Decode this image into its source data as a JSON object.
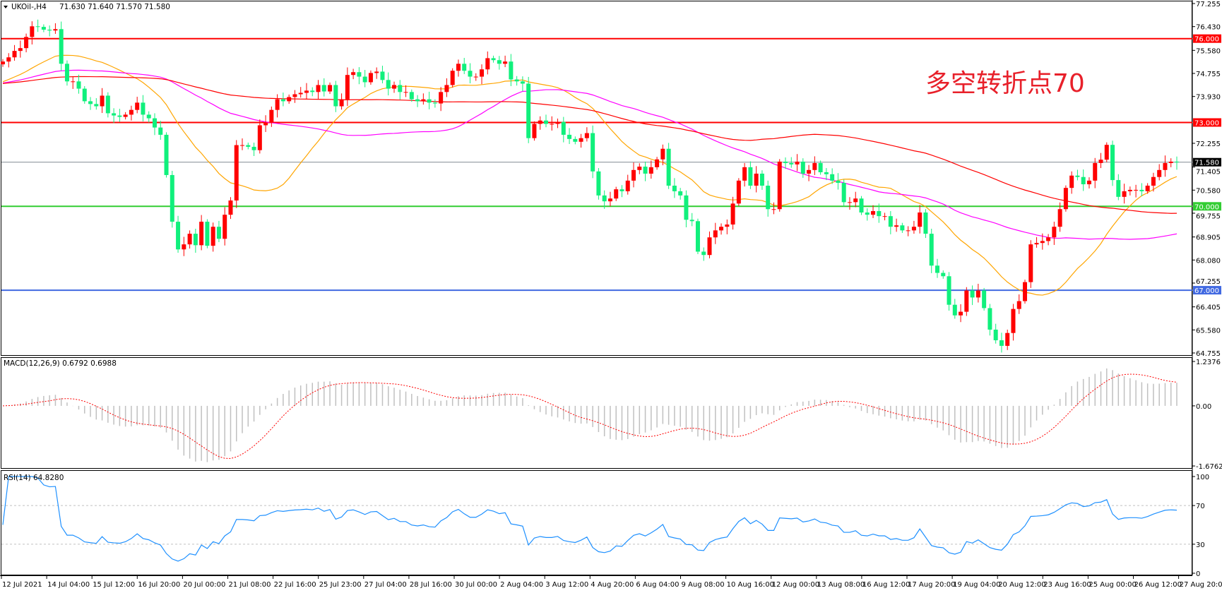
{
  "header": {
    "symbol": "UKOil-,H4",
    "ohlc": "71.630 71.640 71.570 71.580"
  },
  "annotation": "多空转折点70",
  "colors": {
    "up": "#ff0000",
    "down": "#10f07c",
    "ma_fast": "#ffa500",
    "ma_mid": "#ff00ff",
    "ma_slow": "#ff0000",
    "macd_hist": "#c0c0c0",
    "macd_signal": "#ff0000",
    "rsi": "#1e90ff"
  },
  "levels": [
    {
      "label": "76.000",
      "value": 76.0,
      "color": "#ff0000",
      "text_color": "#ffffff"
    },
    {
      "label": "73.000",
      "value": 73.0,
      "color": "#ff0000",
      "text_color": "#ffffff"
    },
    {
      "label": "71.580",
      "value": 71.58,
      "color": "#808a94",
      "tag_color": "#000000",
      "text_color": "#ffffff"
    },
    {
      "label": "70.000",
      "value": 70.0,
      "color": "#32cd32",
      "text_color": "#ffffff"
    },
    {
      "label": "67.000",
      "value": 67.0,
      "color": "#4169e1",
      "text_color": "#ffffff"
    }
  ],
  "macd": {
    "label": "MACD(12,26,9) 0.6792 0.6988",
    "ticks": [
      "1.2376",
      "0.00",
      "-1.6762"
    ]
  },
  "rsi": {
    "label": "RSI(14) 64.8280",
    "ticks": [
      "100",
      "70",
      "30",
      "0"
    ]
  },
  "chart_data": {
    "type": "candlestick",
    "ylim": [
      64.755,
      77.255
    ],
    "price_ticks": [
      "77.255",
      "76.430",
      "75.580",
      "74.755",
      "73.930",
      "72.255",
      "71.405",
      "70.580",
      "69.755",
      "68.905",
      "68.080",
      "67.255",
      "66.405",
      "65.580",
      "64.755"
    ],
    "time_labels": [
      "12 Jul 2021",
      "14 Jul 04:00",
      "15 Jul 12:00",
      "16 Jul 20:00",
      "20 Jul 00:00",
      "21 Jul 08:00",
      "22 Jul 16:00",
      "25 Jul 23:00",
      "27 Jul 04:00",
      "28 Jul 16:00",
      "30 Jul 00:00",
      "2 Aug 04:00",
      "3 Aug 12:00",
      "4 Aug 20:00",
      "6 Aug 04:00",
      "9 Aug 08:00",
      "10 Aug 16:00",
      "12 Aug 00:00",
      "13 Aug 08:00",
      "16 Aug 12:00",
      "17 Aug 20:00",
      "19 Aug 04:00",
      "20 Aug 12:00",
      "23 Aug 16:00",
      "25 Aug 00:00",
      "26 Aug 12:00",
      "27 Aug 20:00"
    ],
    "closes": [
      75.18,
      75.33,
      75.56,
      75.66,
      76.06,
      76.44,
      76.42,
      76.32,
      76.29,
      76.34,
      75.1,
      74.47,
      74.47,
      74.21,
      73.76,
      73.66,
      73.58,
      73.96,
      73.33,
      73.25,
      73.2,
      73.28,
      73.45,
      73.71,
      73.28,
      73.15,
      72.82,
      72.56,
      71.12,
      69.45,
      68.46,
      68.64,
      69.02,
      68.61,
      69.45,
      68.59,
      69.27,
      68.84,
      69.7,
      70.21,
      72.19,
      72.19,
      72.13,
      72.01,
      72.9,
      72.99,
      73.45,
      73.83,
      73.76,
      73.91,
      74.01,
      74.06,
      74.14,
      74.09,
      74.34,
      74.11,
      74.34,
      73.58,
      73.83,
      74.7,
      74.8,
      74.64,
      74.44,
      74.77,
      74.82,
      74.52,
      74.21,
      74.34,
      74.09,
      74.09,
      73.83,
      73.76,
      73.83,
      73.71,
      73.68,
      74.09,
      74.34,
      74.85,
      75.1,
      74.85,
      74.64,
      74.64,
      74.9,
      75.3,
      75.23,
      75.1,
      75.18,
      74.54,
      74.47,
      74.39,
      72.44,
      72.95,
      73.07,
      72.95,
      72.95,
      73.02,
      72.56,
      72.41,
      72.31,
      72.44,
      72.62,
      71.25,
      70.39,
      70.18,
      70.28,
      70.61,
      70.54,
      70.92,
      71.3,
      71.42,
      71.17,
      71.4,
      71.68,
      72.06,
      70.74,
      70.54,
      70.39,
      69.52,
      69.47,
      68.38,
      68.26,
      68.89,
      69.14,
      69.27,
      69.35,
      70.1,
      70.92,
      71.4,
      70.74,
      71.17,
      70.74,
      69.9,
      69.9,
      71.6,
      71.55,
      71.5,
      71.6,
      71.17,
      71.3,
      71.55,
      71.22,
      71.15,
      70.92,
      70.84,
      70.15,
      70.15,
      70.28,
      69.78,
      69.7,
      69.83,
      69.65,
      69.65,
      69.27,
      69.32,
      69.14,
      69.14,
      69.27,
      69.78,
      69.02,
      67.88,
      67.62,
      67.5,
      66.48,
      66.1,
      66.23,
      66.99,
      66.74,
      66.99,
      66.36,
      65.59,
      65.21,
      65.01,
      65.47,
      66.33,
      66.61,
      67.29,
      68.64,
      68.69,
      68.76,
      68.89,
      69.27,
      69.9,
      70.66,
      71.1,
      71.05,
      70.79,
      70.92,
      71.55,
      71.67,
      72.2,
      70.94,
      70.34,
      70.54,
      70.59,
      70.59,
      70.54,
      70.74,
      71.05,
      71.3,
      71.55,
      71.6,
      71.58
    ]
  }
}
